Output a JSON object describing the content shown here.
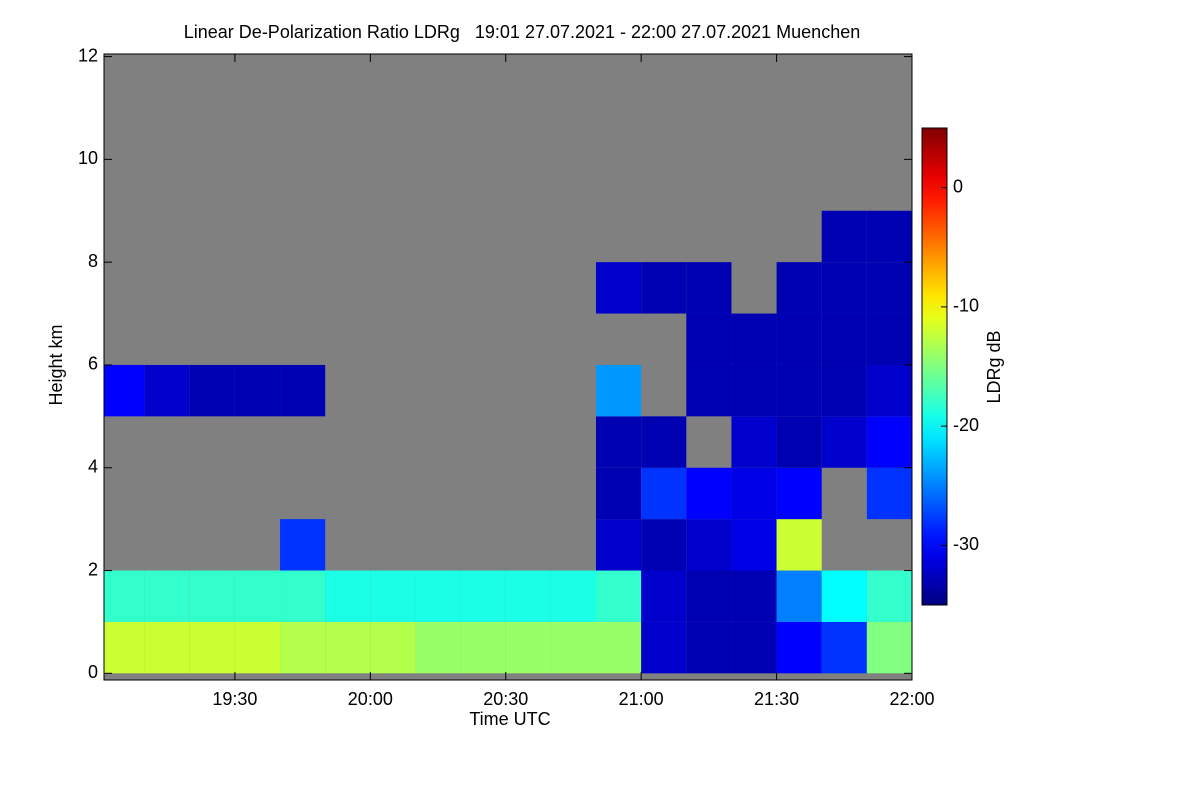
{
  "chart_data": {
    "type": "heatmap",
    "title": "Linear De-Polarization Ratio LDRg   19:01 27.07.2021 - 22:00 27.07.2021 Muenchen",
    "x_label": "Time UTC",
    "y_label": "Height km",
    "colorbar_label": "LDRg dB",
    "xlim": [
      1141,
      1320
    ],
    "xticks": [
      {
        "value": 1170,
        "label": "19:30"
      },
      {
        "value": 1200,
        "label": "20:00"
      },
      {
        "value": 1230,
        "label": "20:30"
      },
      {
        "value": 1260,
        "label": "21:00"
      },
      {
        "value": 1290,
        "label": "21:30"
      },
      {
        "value": 1320,
        "label": "22:00"
      }
    ],
    "ylim": [
      -0.13,
      12.05
    ],
    "yticks": [
      0,
      2,
      4,
      6,
      8,
      10,
      12
    ],
    "clim": [
      -35,
      5
    ],
    "cticks": [
      0,
      -10,
      -20,
      -30
    ],
    "colormap": "jet",
    "missing_color": "#808080",
    "xbins": [
      1141,
      1150,
      1160,
      1170,
      1180,
      1190,
      1200,
      1210,
      1220,
      1230,
      1240,
      1250,
      1260,
      1270,
      1280,
      1290,
      1300,
      1310,
      1320
    ],
    "ybins": [
      0,
      1,
      2,
      3,
      4,
      5,
      6,
      7,
      8,
      9,
      10,
      11,
      12
    ],
    "z": [
      [
        -12,
        -12,
        -12,
        -12,
        -13,
        -13,
        -13,
        -14,
        -14,
        -14,
        -14,
        -14,
        -32,
        -33,
        -33,
        -30,
        -28,
        -15
      ],
      [
        -18,
        -18,
        -18,
        -18,
        -18,
        -19,
        -19,
        -19,
        -19,
        -19,
        -19,
        -18,
        -32,
        -33,
        -33,
        -25,
        -20,
        -18
      ],
      [
        null,
        null,
        null,
        null,
        -28,
        null,
        null,
        null,
        null,
        null,
        null,
        -32,
        -33,
        -32,
        -31,
        -12,
        null,
        null
      ],
      [
        null,
        null,
        null,
        null,
        null,
        null,
        null,
        null,
        null,
        null,
        null,
        -33,
        -28,
        -30,
        -31,
        -30,
        null,
        -28
      ],
      [
        null,
        null,
        null,
        null,
        null,
        null,
        null,
        null,
        null,
        null,
        null,
        -33,
        -33,
        null,
        -32,
        -33,
        -32,
        -30
      ],
      [
        -30,
        -32,
        -33,
        -33,
        -33,
        null,
        null,
        null,
        null,
        null,
        null,
        -24,
        null,
        -33,
        -33,
        -33,
        -33,
        -32
      ],
      [
        null,
        null,
        null,
        null,
        null,
        null,
        null,
        null,
        null,
        null,
        null,
        null,
        null,
        -33,
        -33,
        -33,
        -33,
        -33
      ],
      [
        null,
        null,
        null,
        null,
        null,
        null,
        null,
        null,
        null,
        null,
        null,
        -32,
        -33,
        -33,
        null,
        -33,
        -33,
        -33
      ],
      [
        null,
        null,
        null,
        null,
        null,
        null,
        null,
        null,
        null,
        null,
        null,
        null,
        null,
        null,
        null,
        null,
        -33,
        -33
      ],
      [
        null,
        null,
        null,
        null,
        null,
        null,
        null,
        null,
        null,
        null,
        null,
        null,
        null,
        null,
        null,
        null,
        null,
        null
      ],
      [
        null,
        null,
        null,
        null,
        null,
        null,
        null,
        null,
        null,
        null,
        null,
        null,
        null,
        null,
        null,
        null,
        null,
        null
      ],
      [
        null,
        null,
        null,
        null,
        null,
        null,
        null,
        null,
        null,
        null,
        null,
        null,
        null,
        null,
        null,
        null,
        null,
        null
      ]
    ]
  }
}
